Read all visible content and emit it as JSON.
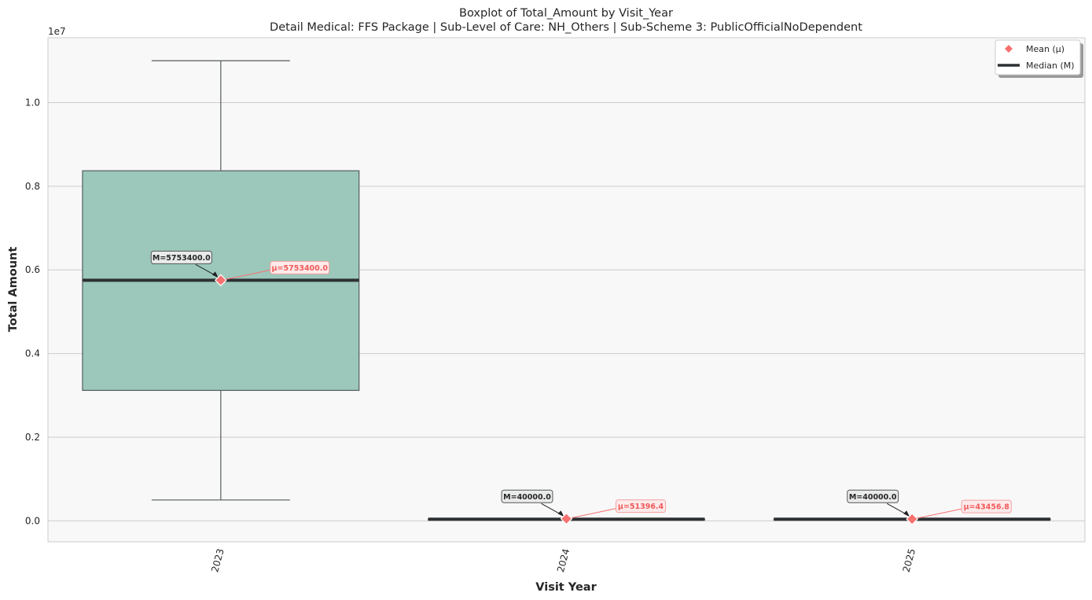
{
  "chart_data": {
    "type": "boxplot",
    "title": "Boxplot of Total_Amount by Visit_Year",
    "subtitle": "Detail Medical: FFS Package | Sub-Level of Care: NH_Others | Sub-Scheme 3: PublicOfficialNoDependent",
    "xlabel": "Visit Year",
    "ylabel": "Total Amount",
    "y_scale_label": "1e7",
    "ylim": [
      -500000,
      11550000
    ],
    "y_ticks": [
      0,
      2000000,
      4000000,
      6000000,
      8000000,
      10000000
    ],
    "y_tick_labels": [
      "0.0",
      "0.2",
      "0.4",
      "0.6",
      "0.8",
      "1.0"
    ],
    "grid": true,
    "legend_position": "top-right",
    "legend": [
      {
        "label": "Mean (μ)",
        "marker": "diamond",
        "color": "#f87171"
      },
      {
        "label": "Median (M)",
        "marker": "line",
        "color": "#2d3133"
      }
    ],
    "categories": [
      "2023",
      "2024",
      "2025"
    ],
    "boxes": [
      {
        "category": "2023",
        "whisker_low": 500000,
        "q1": 3120000,
        "median": 5753400,
        "q3": 8370000,
        "whisker_high": 11000000,
        "mean": 5753400,
        "median_label": "M=5753400.0",
        "mean_label": "μ=5753400.0"
      },
      {
        "category": "2024",
        "whisker_low": 40000,
        "q1": 40000,
        "median": 40000,
        "q3": 40000,
        "whisker_high": 40000,
        "mean": 51396.4,
        "median_label": "M=40000.0",
        "mean_label": "μ=51396.4"
      },
      {
        "category": "2025",
        "whisker_low": 40000,
        "q1": 40000,
        "median": 40000,
        "q3": 40000,
        "whisker_high": 40000,
        "mean": 43456.8,
        "median_label": "M=40000.0",
        "mean_label": "μ=43456.8"
      }
    ],
    "colors": {
      "box_fill": "#9bc8bb",
      "box_edge": "#555b5e",
      "median_line": "#2d3133",
      "mean_marker": "#f87171",
      "plot_background": "#f8f8f8",
      "grid": "#cccccc"
    }
  }
}
